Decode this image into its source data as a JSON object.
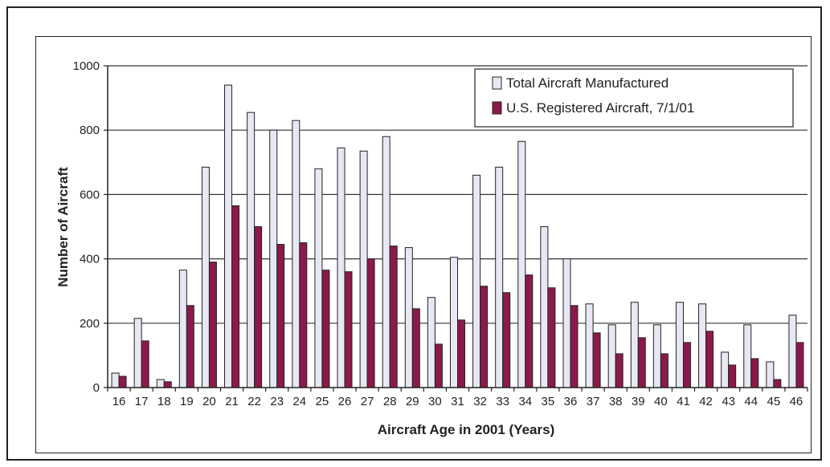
{
  "chart_data": {
    "type": "bar",
    "title": "",
    "xlabel": "Aircraft Age in 2001 (Years)",
    "ylabel": "Number of Aircraft",
    "ylim": [
      0,
      1000
    ],
    "yticks": [
      0,
      200,
      400,
      600,
      800,
      1000
    ],
    "grid": "horizontal",
    "legend_position": "top-right",
    "categories": [
      "16",
      "17",
      "18",
      "19",
      "20",
      "21",
      "22",
      "23",
      "24",
      "25",
      "26",
      "27",
      "28",
      "29",
      "30",
      "31",
      "32",
      "33",
      "34",
      "35",
      "36",
      "37",
      "38",
      "39",
      "40",
      "41",
      "42",
      "43",
      "44",
      "45",
      "46"
    ],
    "series": [
      {
        "name": "Total Aircraft Manufactured",
        "color": "#e8e8f4",
        "values": [
          45,
          215,
          25,
          365,
          685,
          940,
          855,
          800,
          830,
          680,
          745,
          735,
          780,
          435,
          280,
          405,
          660,
          685,
          765,
          500,
          400,
          260,
          195,
          265,
          195,
          265,
          260,
          110,
          195,
          80,
          225
        ]
      },
      {
        "name": "U.S. Registered Aircraft, 7/1/01",
        "color": "#8b1a4a",
        "values": [
          35,
          145,
          18,
          255,
          390,
          565,
          500,
          445,
          450,
          365,
          360,
          400,
          440,
          245,
          135,
          210,
          315,
          295,
          350,
          310,
          255,
          170,
          105,
          155,
          105,
          140,
          175,
          70,
          90,
          25,
          140
        ]
      }
    ]
  }
}
